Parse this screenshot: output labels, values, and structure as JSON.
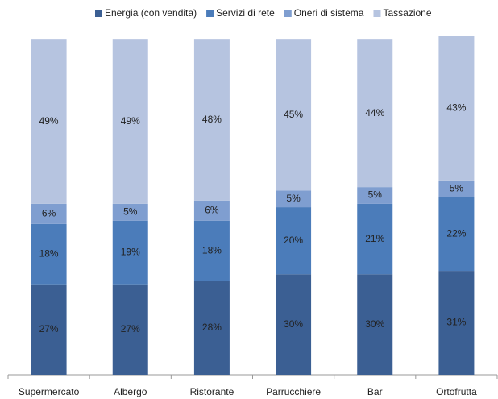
{
  "chart_data": {
    "type": "stacked_bar",
    "categories": [
      "Supermercato",
      "Albergo",
      "Ristorante",
      "Parrucchiere",
      "Bar",
      "Ortofrutta"
    ],
    "series": [
      {
        "name": "Energia (con vendita)",
        "color": "#3b5f93",
        "values": [
          27,
          27,
          28,
          30,
          30,
          31
        ],
        "value_labels": [
          "27%",
          "27%",
          "28%",
          "30%",
          "30%",
          "31%"
        ]
      },
      {
        "name": "Servizi di rete",
        "color": "#4b7cba",
        "values": [
          18,
          19,
          18,
          20,
          21,
          22
        ],
        "value_labels": [
          "18%",
          "19%",
          "18%",
          "20%",
          "21%",
          "22%"
        ]
      },
      {
        "name": "Oneri di sistema",
        "color": "#7f9ed0",
        "values": [
          6,
          5,
          6,
          5,
          5,
          5
        ],
        "value_labels": [
          "6%",
          "5%",
          "6%",
          "5%",
          "5%",
          "5%"
        ]
      },
      {
        "name": "Tassazione",
        "color": "#b6c4e0",
        "values": [
          49,
          49,
          48,
          45,
          44,
          43
        ],
        "value_labels": [
          "49%",
          "49%",
          "48%",
          "45%",
          "44%",
          "43%"
        ]
      }
    ],
    "legend": "top"
  }
}
